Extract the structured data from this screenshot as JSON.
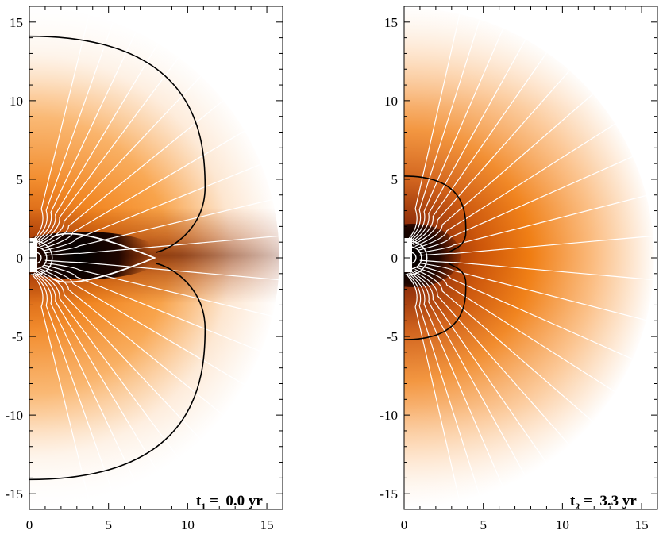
{
  "colors": {
    "ramp": [
      "#ffffff",
      "#fde4cc",
      "#fbbc80",
      "#f89c3c",
      "#f07d12",
      "#cc5408",
      "#8c2a06",
      "#3c0a00",
      "#000000"
    ],
    "axis": "#000000",
    "field_line": "#ffffff",
    "contour_black": "#000000",
    "contour_white": "#ffffff"
  },
  "chart_data": [
    {
      "type": "heatmap",
      "panel": "left",
      "time_label": {
        "prefix": "t",
        "sub": "1",
        "text": " =  0.0 yr"
      },
      "xlim": [
        0,
        16
      ],
      "ylim": [
        -16,
        16
      ],
      "x_ticks": [
        "0",
        "5",
        "10",
        "15"
      ],
      "y_ticks": [
        "15",
        "10",
        "5",
        "0",
        "-5",
        "-10",
        "-15"
      ],
      "max_radius": 15.8,
      "field_line_surface_angles": [
        6,
        12,
        18,
        24,
        30,
        37,
        45,
        54,
        63,
        72,
        81
      ],
      "black_contour": {
        "equatorial_radius": 11.1,
        "polar_radius": 14.1
      },
      "white_contour": {
        "equatorial_radius": 7.9,
        "inner_radius": 1.4
      }
    },
    {
      "type": "heatmap",
      "panel": "right",
      "time_label": {
        "prefix": "t",
        "sub": "2",
        "text": " =  3.3 yr"
      },
      "xlim": [
        0,
        16
      ],
      "ylim": [
        -16,
        16
      ],
      "x_ticks": [
        "0",
        "5",
        "10",
        "15"
      ],
      "y_ticks": [
        "15",
        "10",
        "5",
        "0",
        "-5",
        "-10",
        "-15"
      ],
      "max_radius": 15.8,
      "field_line_surface_angles": [
        5,
        10,
        16,
        22,
        28,
        35,
        43,
        52,
        61,
        71,
        81
      ],
      "black_contour": {
        "equatorial_radius": 3.9,
        "polar_radius": 5.2
      }
    }
  ]
}
